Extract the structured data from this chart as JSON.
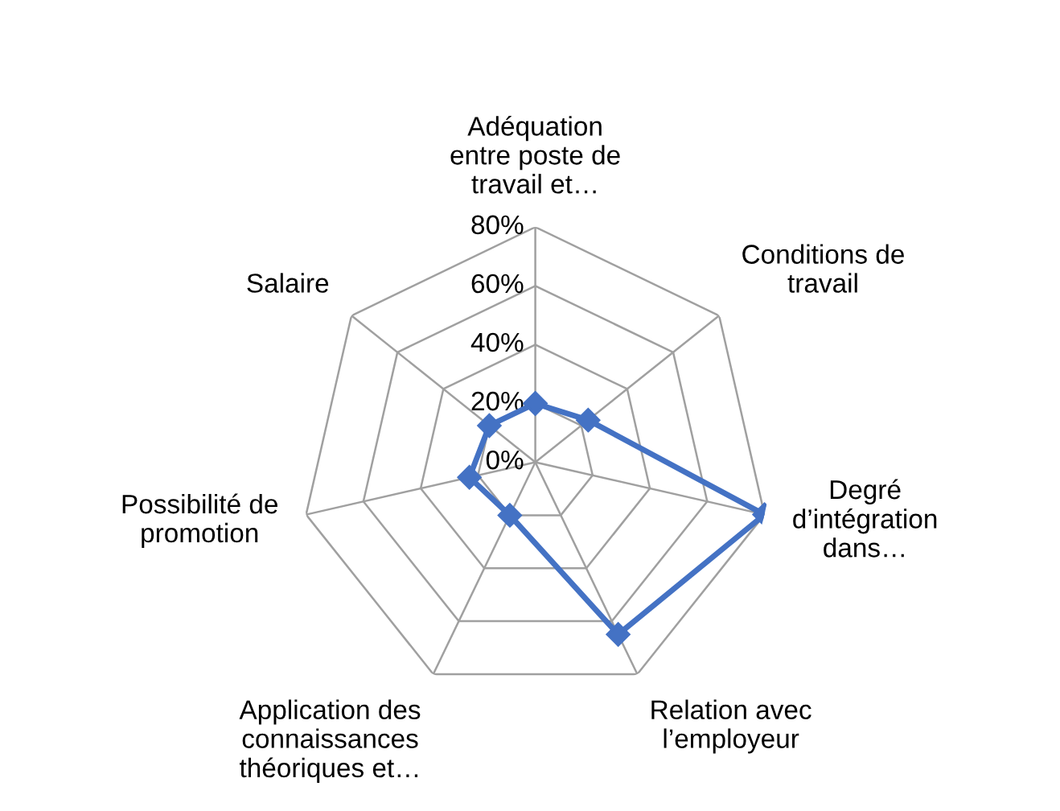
{
  "chart_data": {
    "type": "radar",
    "categories": [
      "Adéquation entre poste de travail et…",
      "Conditions de travail",
      "Degré d’intégration dans…",
      "Relation avec l’employeur",
      "Application des connaissances théoriques et…",
      "Possibilité de promotion",
      "Salaire"
    ],
    "series": [
      {
        "color": "#4472c4",
        "values": [
          20,
          23,
          80,
          65,
          20,
          23,
          20
        ]
      }
    ],
    "ylim": [
      0,
      80
    ],
    "yticks": [
      {
        "value": 0,
        "label": "0%"
      },
      {
        "value": 20,
        "label": "20%"
      },
      {
        "value": 40,
        "label": "40%"
      },
      {
        "value": 60,
        "label": "60%"
      },
      {
        "value": 80,
        "label": "80%"
      }
    ],
    "grid": true,
    "marker": "diamond",
    "line_style": "solid"
  }
}
